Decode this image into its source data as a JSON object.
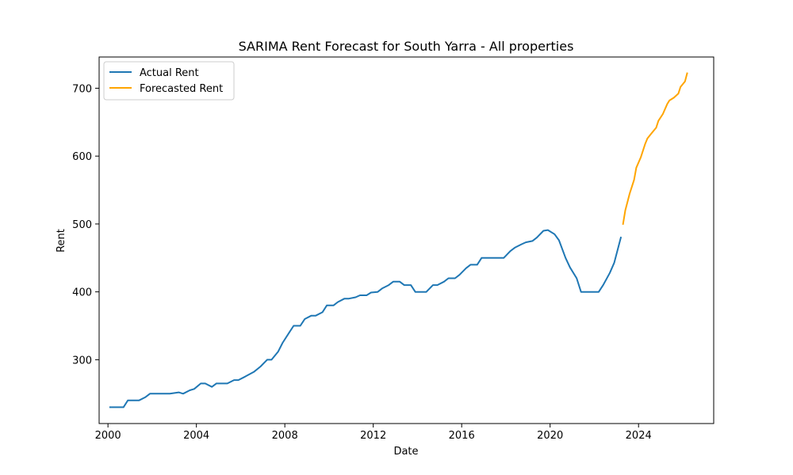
{
  "chart_data": {
    "type": "line",
    "title": "SARIMA Rent Forecast for South Yarra - All properties",
    "xlabel": "Date",
    "ylabel": "Rent",
    "xlim": [
      1999.6,
      2027.4
    ],
    "ylim": [
      206,
      746
    ],
    "x_ticks": [
      2000,
      2004,
      2008,
      2012,
      2016,
      2020,
      2024
    ],
    "x_tick_labels": [
      "2000",
      "2004",
      "2008",
      "2012",
      "2016",
      "2020",
      "2024"
    ],
    "y_ticks": [
      300,
      400,
      500,
      600,
      700
    ],
    "y_tick_labels": [
      "300",
      "400",
      "500",
      "600",
      "700"
    ],
    "grid": false,
    "legend_position": "upper-left",
    "series": [
      {
        "name": "Actual Rent",
        "color": "#1f77b4",
        "points": [
          [
            2000.1,
            230
          ],
          [
            2000.4,
            230
          ],
          [
            2000.7,
            230
          ],
          [
            2000.9,
            240
          ],
          [
            2001.2,
            240
          ],
          [
            2001.4,
            240
          ],
          [
            2001.7,
            245
          ],
          [
            2001.9,
            250
          ],
          [
            2002.4,
            250
          ],
          [
            2002.8,
            250
          ],
          [
            2003.2,
            252
          ],
          [
            2003.4,
            250
          ],
          [
            2003.7,
            255
          ],
          [
            2003.9,
            257
          ],
          [
            2004.2,
            265
          ],
          [
            2004.4,
            265
          ],
          [
            2004.7,
            260
          ],
          [
            2004.9,
            265
          ],
          [
            2005.4,
            265
          ],
          [
            2005.7,
            270
          ],
          [
            2005.9,
            270
          ],
          [
            2006.2,
            275
          ],
          [
            2006.6,
            282
          ],
          [
            2006.9,
            290
          ],
          [
            2007.2,
            300
          ],
          [
            2007.4,
            300
          ],
          [
            2007.7,
            312
          ],
          [
            2007.9,
            325
          ],
          [
            2008.2,
            340
          ],
          [
            2008.4,
            350
          ],
          [
            2008.7,
            350
          ],
          [
            2008.9,
            360
          ],
          [
            2009.2,
            365
          ],
          [
            2009.4,
            365
          ],
          [
            2009.7,
            370
          ],
          [
            2009.9,
            380
          ],
          [
            2010.2,
            380
          ],
          [
            2010.4,
            385
          ],
          [
            2010.7,
            390
          ],
          [
            2010.9,
            390
          ],
          [
            2011.2,
            392
          ],
          [
            2011.4,
            395
          ],
          [
            2011.7,
            395
          ],
          [
            2011.9,
            399
          ],
          [
            2012.2,
            400
          ],
          [
            2012.4,
            405
          ],
          [
            2012.7,
            410
          ],
          [
            2012.9,
            415
          ],
          [
            2013.2,
            415
          ],
          [
            2013.4,
            410
          ],
          [
            2013.7,
            410
          ],
          [
            2013.9,
            400
          ],
          [
            2014.2,
            400
          ],
          [
            2014.4,
            400
          ],
          [
            2014.7,
            410
          ],
          [
            2014.9,
            410
          ],
          [
            2015.2,
            415
          ],
          [
            2015.4,
            420
          ],
          [
            2015.7,
            420
          ],
          [
            2015.9,
            425
          ],
          [
            2016.2,
            435
          ],
          [
            2016.4,
            440
          ],
          [
            2016.7,
            440
          ],
          [
            2016.9,
            450
          ],
          [
            2017.2,
            450
          ],
          [
            2017.4,
            450
          ],
          [
            2017.7,
            450
          ],
          [
            2017.9,
            450
          ],
          [
            2018.2,
            460
          ],
          [
            2018.4,
            465
          ],
          [
            2018.7,
            470
          ],
          [
            2018.9,
            473
          ],
          [
            2019.2,
            475
          ],
          [
            2019.4,
            480
          ],
          [
            2019.7,
            490
          ],
          [
            2019.9,
            491
          ],
          [
            2020.2,
            485
          ],
          [
            2020.4,
            476
          ],
          [
            2020.7,
            450
          ],
          [
            2020.9,
            436
          ],
          [
            2021.2,
            420
          ],
          [
            2021.4,
            400
          ],
          [
            2021.7,
            400
          ],
          [
            2021.9,
            400
          ],
          [
            2022.2,
            400
          ],
          [
            2022.4,
            410
          ],
          [
            2022.7,
            428
          ],
          [
            2022.9,
            443
          ],
          [
            2023.2,
            480
          ]
        ]
      },
      {
        "name": "Forecasted Rent",
        "color": "#ffa500",
        "points": [
          [
            2023.3,
            500
          ],
          [
            2023.4,
            520
          ],
          [
            2023.6,
            545
          ],
          [
            2023.8,
            565
          ],
          [
            2023.9,
            583
          ],
          [
            2024.1,
            598
          ],
          [
            2024.3,
            618
          ],
          [
            2024.4,
            626
          ],
          [
            2024.6,
            634
          ],
          [
            2024.8,
            642
          ],
          [
            2024.9,
            652
          ],
          [
            2025.1,
            662
          ],
          [
            2025.3,
            677
          ],
          [
            2025.4,
            682
          ],
          [
            2025.6,
            686
          ],
          [
            2025.8,
            692
          ],
          [
            2025.9,
            702
          ],
          [
            2026.1,
            710
          ],
          [
            2026.2,
            722
          ]
        ]
      }
    ]
  }
}
